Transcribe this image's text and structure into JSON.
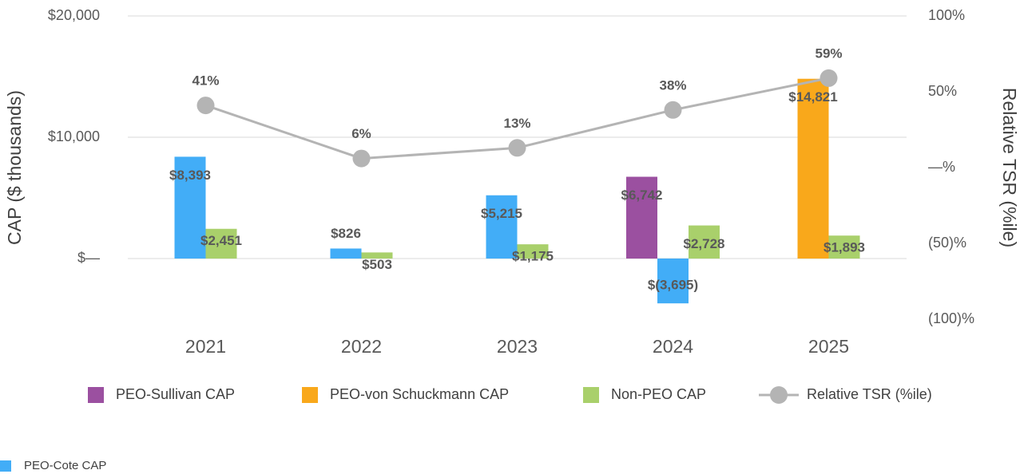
{
  "chart_data": {
    "type": "bar",
    "y_label": "CAP ($ thousands)",
    "y2_label": "Relative TSR (%ile)",
    "categories": [
      "2021",
      "2022",
      "2023",
      "2024",
      "2025"
    ],
    "ylim": [
      -5000,
      20000
    ],
    "yticks": [
      {
        "value": 0,
        "label": "$—"
      },
      {
        "value": 10000,
        "label": "$10,000"
      },
      {
        "value": 20000,
        "label": "$20,000"
      }
    ],
    "y2lim": [
      -100,
      100
    ],
    "y2ticks": [
      {
        "value": -100,
        "label": "(100)%"
      },
      {
        "value": -50,
        "label": "(50)%"
      },
      {
        "value": 0,
        "label": "—%"
      },
      {
        "value": 50,
        "label": "50%"
      },
      {
        "value": 100,
        "label": "100%"
      }
    ],
    "grid": true,
    "series": [
      {
        "name": "PEO-Sullivan CAP",
        "color": "#9b50a0",
        "values": [
          null,
          null,
          null,
          6742,
          null
        ],
        "value_labels": [
          null,
          null,
          null,
          "$6,742",
          null
        ]
      },
      {
        "name": "PEO-von Schuckmann CAP",
        "color": "#f9a81b",
        "values": [
          null,
          null,
          null,
          null,
          14821
        ],
        "value_labels": [
          null,
          null,
          null,
          null,
          "$14,821"
        ]
      },
      {
        "name": "PEO-Cote CAP",
        "color": "#42adf7",
        "values": [
          8393,
          826,
          5215,
          -3695,
          null
        ],
        "value_labels": [
          "$8,393",
          "$826",
          "$5,215",
          "$(3,695)",
          null
        ]
      },
      {
        "name": "Non-PEO CAP",
        "color": "#a9d06b",
        "values": [
          2451,
          503,
          1175,
          2728,
          1893
        ],
        "value_labels": [
          "$2,451",
          "$503",
          "$1,175",
          "$2,728",
          "$1,893"
        ]
      },
      {
        "name": "Relative TSR (%ile)",
        "type": "line",
        "axis": "y2",
        "color": "#b4b4b4",
        "values": [
          41,
          6,
          13,
          38,
          59
        ],
        "value_labels": [
          "41%",
          "6%",
          "13%",
          "38%",
          "59%"
        ]
      }
    ]
  }
}
